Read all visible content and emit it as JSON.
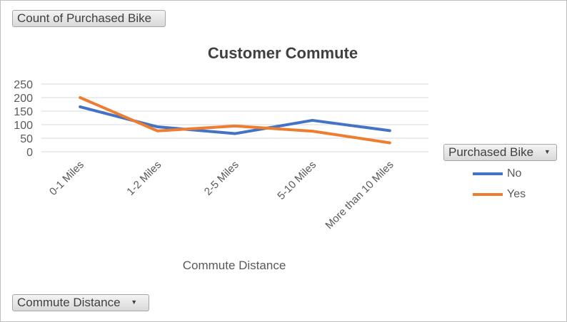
{
  "buttons": {
    "value_field": "Count of Purchased Bike",
    "legend_field": "Purchased Bike",
    "axis_field": "Commute Distance"
  },
  "icons": {
    "dropdown": "chevron-down-icon"
  },
  "chart_data": {
    "type": "line",
    "title": "Customer Commute",
    "xlabel": "Commute Distance",
    "ylabel": "",
    "categories": [
      "0-1 Miles",
      "1-2 Miles",
      "2-5 Miles",
      "5-10 Miles",
      "More than 10 Miles"
    ],
    "series": [
      {
        "name": "No",
        "values": [
          166,
          92,
          67,
          116,
          78
        ],
        "color": "#4472c4"
      },
      {
        "name": "Yes",
        "values": [
          200,
          77,
          95,
          76,
          33
        ],
        "color": "#ed7d31"
      }
    ],
    "ylim": [
      0,
      250
    ],
    "yticks": [
      0,
      50,
      100,
      150,
      200,
      250
    ],
    "grid": true,
    "legend_position": "right"
  }
}
